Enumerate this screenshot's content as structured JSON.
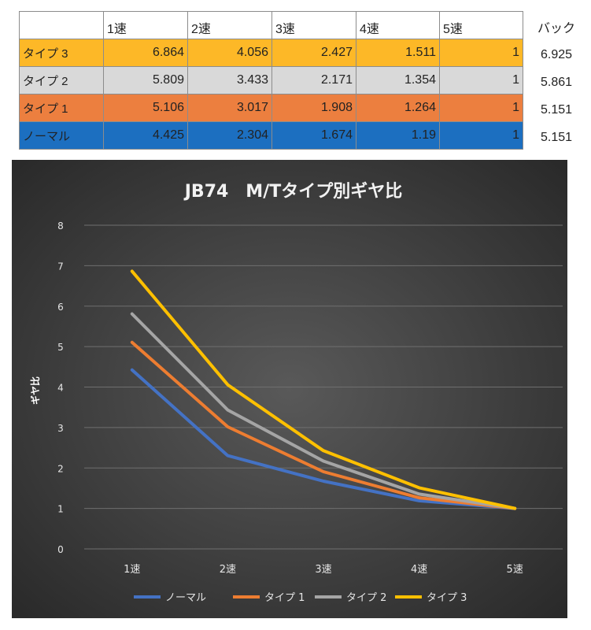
{
  "table": {
    "headers": [
      "",
      "1速",
      "2速",
      "3速",
      "4速",
      "5速"
    ],
    "extra_header": "バック",
    "rows": [
      {
        "name": "タイプ 3",
        "values": [
          "6.864",
          "4.056",
          "2.427",
          "1.511",
          "1"
        ],
        "reverse": "6.925",
        "color": "#fdb827"
      },
      {
        "name": "タイプ 2",
        "values": [
          "5.809",
          "3.433",
          "2.171",
          "1.354",
          "1"
        ],
        "reverse": "5.861",
        "color": "#d9d9d9"
      },
      {
        "name": "タイプ 1",
        "values": [
          "5.106",
          "3.017",
          "1.908",
          "1.264",
          "1"
        ],
        "reverse": "5.151",
        "color": "#ec7f3f"
      },
      {
        "name": "ノーマル",
        "values": [
          "4.425",
          "2.304",
          "1.674",
          "1.19",
          "1"
        ],
        "reverse": "5.151",
        "color": "#1c6fc0"
      }
    ]
  },
  "chart_data": {
    "type": "line",
    "title": "JB74　M/Tタイプ別ギヤ比",
    "xlabel": "",
    "ylabel": "ギヤ比",
    "categories": [
      "1速",
      "2速",
      "3速",
      "4速",
      "5速"
    ],
    "ylim": [
      0,
      8
    ],
    "yticks": [
      0,
      1,
      2,
      3,
      4,
      5,
      6,
      7,
      8
    ],
    "grid": true,
    "legend": "bottom",
    "series": [
      {
        "name": "ノーマル",
        "values": [
          4.425,
          2.304,
          1.674,
          1.19,
          1
        ],
        "color": "#4472c4"
      },
      {
        "name": "タイプ 1",
        "values": [
          5.106,
          3.017,
          1.908,
          1.264,
          1
        ],
        "color": "#ed7d31"
      },
      {
        "name": "タイプ 2",
        "values": [
          5.809,
          3.433,
          2.171,
          1.354,
          1
        ],
        "color": "#a5a5a5"
      },
      {
        "name": "タイプ 3",
        "values": [
          6.864,
          4.056,
          2.427,
          1.511,
          1
        ],
        "color": "#ffc000"
      }
    ]
  }
}
